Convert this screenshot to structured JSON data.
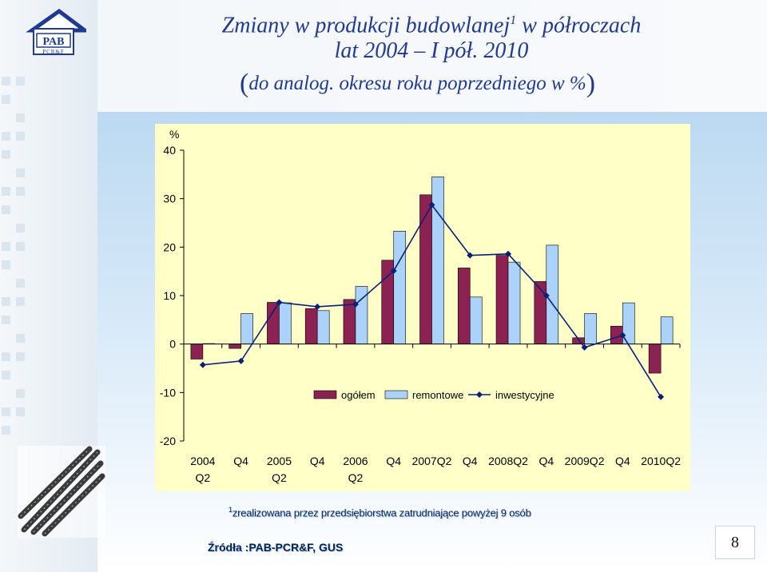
{
  "slide": {
    "title_main": "Zmiany w produkcji budowlanej",
    "title_sup": "1",
    "title_rest": " w półroczach",
    "title_line2": "lat 2004 – I pół. 2010",
    "subtitle_open": "(",
    "subtitle_text": "do analog. okresu roku poprzedniego w %",
    "subtitle_close": ")",
    "footnote_sup": "1",
    "footnote_text": "zrealizowana przez przedsiębiorstwa zatrudniające powyżej 9 osób",
    "source": "Źródła :PAB-PCR&F, GUS",
    "page_number": "8"
  },
  "logo": {
    "big": "PAB",
    "small": "PCR&F"
  },
  "colors": {
    "title": "#1f3a93",
    "plot_bg": "#ffffc8",
    "ogolem": "#8b2252",
    "remontowe": "#aad2fa",
    "inwestycyjne": "#0a1f7a"
  },
  "chart_data": {
    "type": "bar",
    "title": "",
    "ylabel": "%",
    "ylim": [
      -20,
      40
    ],
    "yticks": [
      -20,
      -10,
      0,
      10,
      20,
      30,
      40
    ],
    "x_labels": [
      [
        "2004",
        "Q2"
      ],
      [
        "Q4"
      ],
      [
        "2005",
        "Q2"
      ],
      [
        "Q4"
      ],
      [
        "2006",
        "Q2"
      ],
      [
        "Q4"
      ],
      [
        "2007Q2"
      ],
      [
        "Q4"
      ],
      [
        "2008Q2"
      ],
      [
        "Q4"
      ],
      [
        "2009Q2"
      ],
      [
        "Q4"
      ],
      [
        "2010Q2"
      ]
    ],
    "series": [
      {
        "name": "ogółem",
        "kind": "bar",
        "values": [
          -3.1,
          -0.9,
          8.6,
          7.3,
          9.2,
          17.3,
          30.8,
          15.7,
          18.3,
          12.9,
          1.3,
          3.7,
          -6.0
        ]
      },
      {
        "name": "remontowe",
        "kind": "bar",
        "values": [
          0.1,
          6.3,
          8.5,
          6.9,
          11.9,
          23.3,
          34.5,
          9.7,
          16.9,
          20.4,
          6.3,
          8.5,
          5.6
        ]
      },
      {
        "name": "inwestycyjne",
        "kind": "line",
        "values": [
          -4.3,
          -3.5,
          8.6,
          7.7,
          8.2,
          15.1,
          28.7,
          18.3,
          18.6,
          10.0,
          -0.7,
          1.8,
          -10.9
        ]
      }
    ],
    "grid": false,
    "legend": "bottom-right"
  }
}
